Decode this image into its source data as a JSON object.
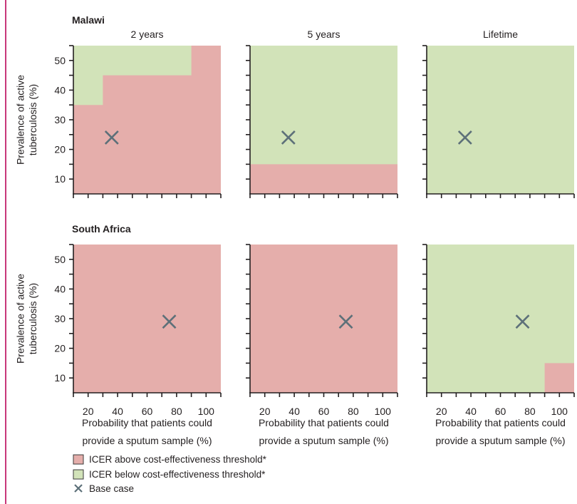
{
  "colors": {
    "above": "#e5aeab",
    "below": "#d2e3b9",
    "marker": "#5d7079",
    "axis": "#231f20",
    "frame": "#c8377a"
  },
  "chart_data": {
    "type": "heatmap",
    "x_ticks": [
      20,
      40,
      60,
      80,
      100
    ],
    "y_ticks": [
      10,
      20,
      30,
      40,
      50
    ],
    "xlim": [
      10,
      110
    ],
    "ylim": [
      5,
      55
    ],
    "xlabel_line1": "Probability that patients could",
    "xlabel_line2": "provide a sputum sample (%)",
    "ylabel_line1": "Prevalence of active",
    "ylabel_line2": "tuberculosis (%)",
    "legend": {
      "above": "ICER above cost-effectiveness threshold*",
      "below": "ICER below cost-effectiveness threshold*",
      "base": "Base case"
    },
    "regions": [
      {
        "name": "Malawi",
        "panels": [
          {
            "title": "2 years",
            "below_boundary": [
              [
                10,
                35
              ],
              [
                30,
                35
              ],
              [
                30,
                45
              ],
              [
                90,
                45
              ],
              [
                90,
                55
              ],
              [
                10,
                55
              ]
            ],
            "base_case": {
              "x": 36,
              "y": 24
            }
          },
          {
            "title": "5 years",
            "below_boundary": [
              [
                10,
                15
              ],
              [
                110,
                15
              ],
              [
                110,
                55
              ],
              [
                10,
                55
              ]
            ],
            "base_case": {
              "x": 36,
              "y": 24
            }
          },
          {
            "title": "Lifetime",
            "below_boundary": [
              [
                10,
                5
              ],
              [
                110,
                5
              ],
              [
                110,
                55
              ],
              [
                10,
                55
              ]
            ],
            "base_case": {
              "x": 36,
              "y": 24
            }
          }
        ]
      },
      {
        "name": "South Africa",
        "panels": [
          {
            "title": "",
            "below_boundary": [],
            "base_case": {
              "x": 75,
              "y": 29
            }
          },
          {
            "title": "",
            "below_boundary": [],
            "base_case": {
              "x": 75,
              "y": 29
            }
          },
          {
            "title": "",
            "below_boundary": [
              [
                10,
                5
              ],
              [
                90,
                5
              ],
              [
                90,
                15
              ],
              [
                110,
                15
              ],
              [
                110,
                55
              ],
              [
                10,
                55
              ]
            ],
            "base_case": {
              "x": 75,
              "y": 29
            }
          }
        ]
      }
    ]
  }
}
